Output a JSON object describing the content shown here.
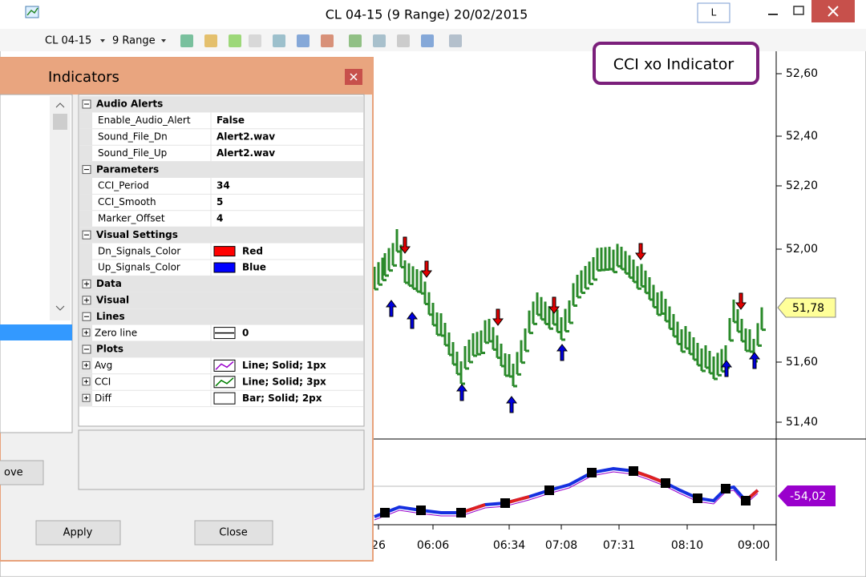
{
  "window": {
    "title": "CL 04-15 (9 Range)  20/02/2015",
    "buttons": [
      "L"
    ]
  },
  "toolbar": {
    "instrument": "CL 04-15",
    "period": "9 Range"
  },
  "chart": {
    "annotation": "CCI xo Indicator",
    "price_labels": [
      "52,60",
      "52,40",
      "52,20",
      "52,00",
      "51,60",
      "51,40"
    ],
    "price_tag": "51,78",
    "indicator_tag": "-54,02",
    "time_labels": [
      "26",
      "06:06",
      "06:34",
      "07:08",
      "07:31",
      "08:10",
      "09:00"
    ]
  },
  "dialog": {
    "title": "Indicators",
    "groups": [
      {
        "name": "Audio Alerts",
        "expanded": true,
        "rows": [
          {
            "name": "Enable_Audio_Alert",
            "value": "False"
          },
          {
            "name": "Sound_File_Dn",
            "value": "Alert2.wav"
          },
          {
            "name": "Sound_File_Up",
            "value": "Alert2.wav"
          }
        ]
      },
      {
        "name": "Parameters",
        "expanded": true,
        "rows": [
          {
            "name": "CCI_Period",
            "value": "34"
          },
          {
            "name": "CCI_Smooth",
            "value": "5"
          },
          {
            "name": "Marker_Offset",
            "value": "4"
          }
        ]
      },
      {
        "name": "Visual Settings",
        "expanded": true,
        "rows": [
          {
            "name": "Dn_Signals_Color",
            "value": "Red",
            "swatch": "#ff0000"
          },
          {
            "name": "Up_Signals_Color",
            "value": "Blue",
            "swatch": "#0000ff"
          }
        ]
      },
      {
        "name": "Data",
        "expanded": false,
        "rows": []
      },
      {
        "name": "Visual",
        "expanded": false,
        "rows": []
      },
      {
        "name": "Lines",
        "expanded": true,
        "rows": [
          {
            "name": "Zero line",
            "value": "0",
            "expandable": true,
            "stroke": "#000000"
          }
        ]
      },
      {
        "name": "Plots",
        "expanded": true,
        "rows": [
          {
            "name": "Avg",
            "value": "Line; Solid; 1px",
            "expandable": true,
            "stroke": "#9900cc"
          },
          {
            "name": "CCI",
            "value": "Line; Solid; 3px",
            "expandable": true,
            "stroke": "#008000"
          },
          {
            "name": "Diff",
            "value": "Bar; Solid; 2px",
            "expandable": true,
            "stroke": "#ffffff"
          }
        ]
      }
    ],
    "buttons": [
      "Apply",
      "Close"
    ],
    "partial_button": "ove"
  }
}
